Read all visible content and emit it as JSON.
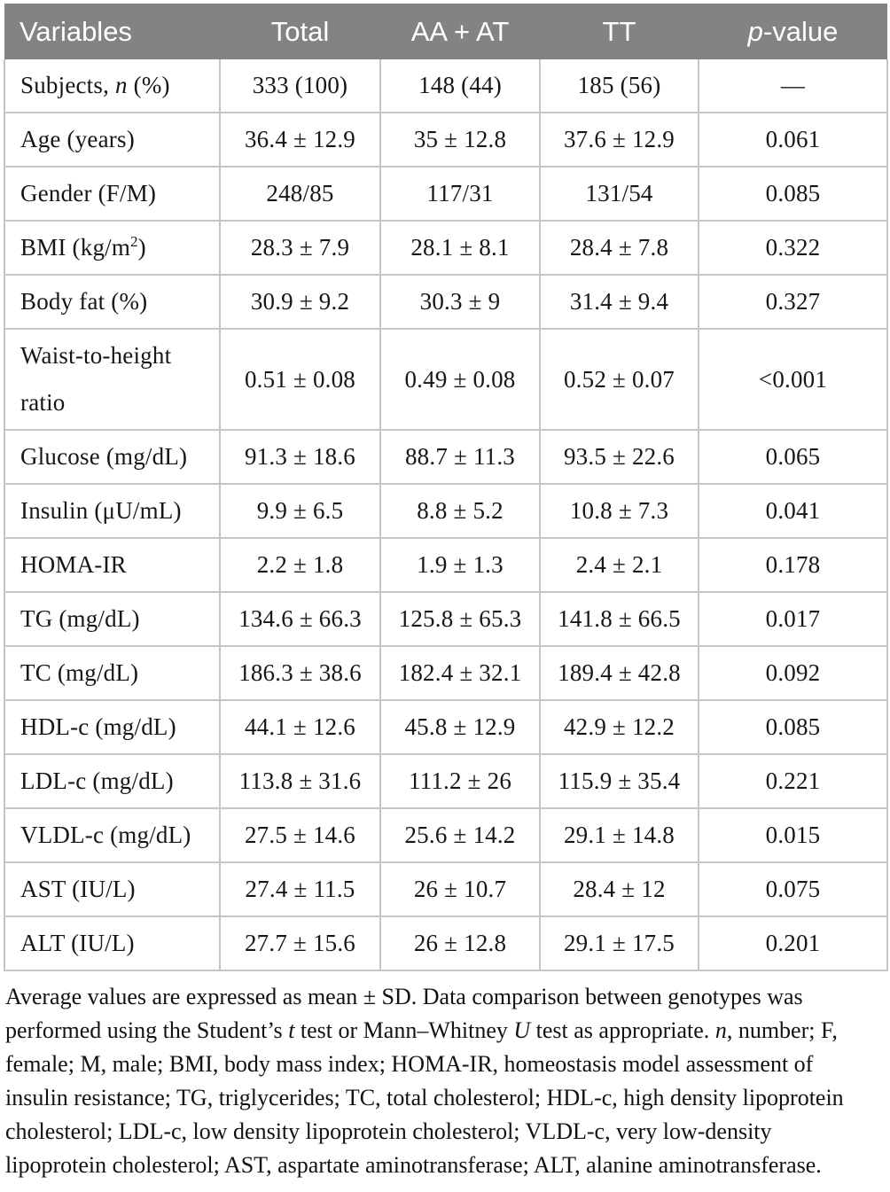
{
  "colors": {
    "header_bg": "#838383",
    "header_text": "#ffffff",
    "grid_line": "#c6c6c6",
    "body_text": "#161616",
    "page_bg": "#ffffff"
  },
  "table": {
    "columns": [
      {
        "id": "variables",
        "label": "Variables"
      },
      {
        "id": "total",
        "label": "Total"
      },
      {
        "id": "aa-at",
        "label": "AA + AT"
      },
      {
        "id": "tt",
        "label": "TT"
      },
      {
        "id": "p-value",
        "label": "*p*-value"
      }
    ],
    "rows": [
      {
        "label": "Subjects, *n* (%)",
        "values": [
          "333 (100)",
          "148 (44)",
          "185 (56)",
          "—"
        ]
      },
      {
        "label": "Age (years)",
        "values": [
          "36.4 ± 12.9",
          "35 ± 12.8",
          "37.6 ± 12.9",
          "0.061"
        ]
      },
      {
        "label": "Gender (F/M)",
        "values": [
          "248/85",
          "117/31",
          "131/54",
          "0.085"
        ]
      },
      {
        "label": "BMI (kg/m^2^)",
        "values": [
          "28.3 ± 7.9",
          "28.1 ± 8.1",
          "28.4 ± 7.8",
          "0.322"
        ]
      },
      {
        "label": "Body fat (%)",
        "values": [
          "30.9 ± 9.2",
          "30.3 ± 9",
          "31.4 ± 9.4",
          "0.327"
        ]
      },
      {
        "label": "Waist-to-height ratio",
        "values": [
          "0.51 ± 0.08",
          "0.49 ± 0.08",
          "0.52 ± 0.07",
          "<0.001"
        ]
      },
      {
        "label": "Glucose (mg/dL)",
        "values": [
          "91.3 ± 18.6",
          "88.7 ± 11.3",
          "93.5 ± 22.6",
          "0.065"
        ]
      },
      {
        "label": "Insulin (μU/mL)",
        "values": [
          "9.9 ± 6.5",
          "8.8 ± 5.2",
          "10.8 ± 7.3",
          "0.041"
        ]
      },
      {
        "label": "HOMA-IR",
        "values": [
          "2.2 ± 1.8",
          "1.9 ± 1.3",
          "2.4 ± 2.1",
          "0.178"
        ]
      },
      {
        "label": "TG (mg/dL)",
        "values": [
          "134.6 ± 66.3",
          "125.8 ± 65.3",
          "141.8 ± 66.5",
          "0.017"
        ]
      },
      {
        "label": "TC (mg/dL)",
        "values": [
          "186.3 ± 38.6",
          "182.4 ± 32.1",
          "189.4 ± 42.8",
          "0.092"
        ]
      },
      {
        "label": "HDL-c (mg/dL)",
        "values": [
          "44.1 ± 12.6",
          "45.8 ± 12.9",
          "42.9 ± 12.2",
          "0.085"
        ]
      },
      {
        "label": "LDL-c (mg/dL)",
        "values": [
          "113.8 ± 31.6",
          "111.2 ± 26",
          "115.9 ± 35.4",
          "0.221"
        ]
      },
      {
        "label": "VLDL-c (mg/dL)",
        "values": [
          "27.5 ± 14.6",
          "25.6 ± 14.2",
          "29.1 ± 14.8",
          "0.015"
        ]
      },
      {
        "label": "AST (IU/L)",
        "values": [
          "27.4 ± 11.5",
          "26 ± 10.7",
          "28.4 ± 12",
          "0.075"
        ]
      },
      {
        "label": "ALT (IU/L)",
        "values": [
          "27.7 ± 15.6",
          "26 ± 12.8",
          "29.1 ± 17.5",
          "0.201"
        ]
      }
    ]
  },
  "footnote": "Average values are expressed as mean ± SD. Data comparison between genotypes was performed using the Student’s *t* test or Mann–Whitney *U* test as appropriate. *n*, number; F, female; M, male; BMI, body mass index; HOMA-IR, homeostasis model assessment of insulin resistance; TG, triglycerides; TC, total cholesterol; HDL-c, high density lipoprotein cholesterol; LDL-c, low density lipoprotein cholesterol; VLDL-c, very low-density lipoprotein cholesterol; AST, aspartate aminotransferase; ALT, alanine aminotransferase."
}
